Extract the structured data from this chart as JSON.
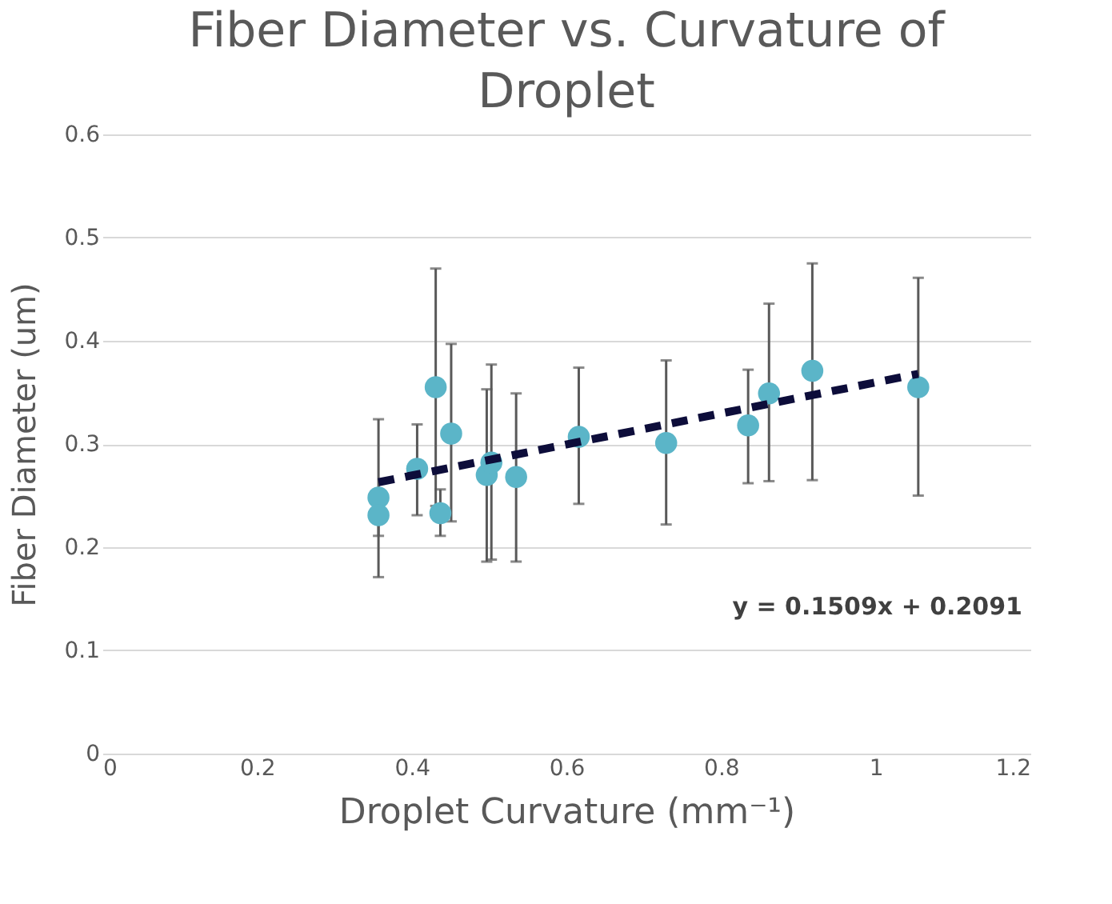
{
  "chart_data": {
    "type": "scatter",
    "title": "Fiber Diameter vs. Curvature of Droplet",
    "xlabel": "Droplet Curvature (mm⁻¹)",
    "ylabel": "Fiber Diameter (um)",
    "xlim": [
      0,
      1.2
    ],
    "xticks": [
      0,
      0.2,
      0.4,
      0.6,
      0.8,
      1,
      1.2
    ],
    "ylim": [
      0,
      0.6
    ],
    "yticks": [
      0,
      0.1,
      0.2,
      0.3,
      0.4,
      0.5,
      0.6
    ],
    "grid": "y",
    "annotations": [
      "y = 0.1509x + 0.2091"
    ],
    "series": [
      {
        "color": "#5bb5c8",
        "marker": "circle",
        "x": [
          0.357,
          0.357,
          0.407,
          0.431,
          0.437,
          0.451,
          0.497,
          0.503,
          0.535,
          0.616,
          0.729,
          0.835,
          0.862,
          0.918,
          1.055
        ],
        "values": [
          0.248,
          0.231,
          0.276,
          0.355,
          0.233,
          0.31,
          0.27,
          0.282,
          0.268,
          0.307,
          0.301,
          0.318,
          0.349,
          0.371,
          0.355
        ],
        "errors": [
          [
            0.171,
            0.324
          ],
          [
            0.211,
            0.231
          ],
          [
            0.231,
            0.319
          ],
          [
            0.24,
            0.47
          ],
          [
            0.211,
            0.256
          ],
          [
            0.225,
            0.397
          ],
          [
            0.186,
            0.353
          ],
          [
            0.188,
            0.377
          ],
          [
            0.186,
            0.349
          ],
          [
            0.242,
            0.374
          ],
          [
            0.222,
            0.381
          ],
          [
            0.262,
            0.372
          ],
          [
            0.264,
            0.436
          ],
          [
            0.265,
            0.475
          ],
          [
            0.25,
            0.461
          ]
        ]
      },
      {
        "type": "line",
        "color": "#0d0d3a",
        "line_style": "dashed",
        "marker": "none",
        "x": [
          0.357,
          1.055
        ],
        "values": [
          0.263,
          0.368
        ]
      }
    ]
  }
}
